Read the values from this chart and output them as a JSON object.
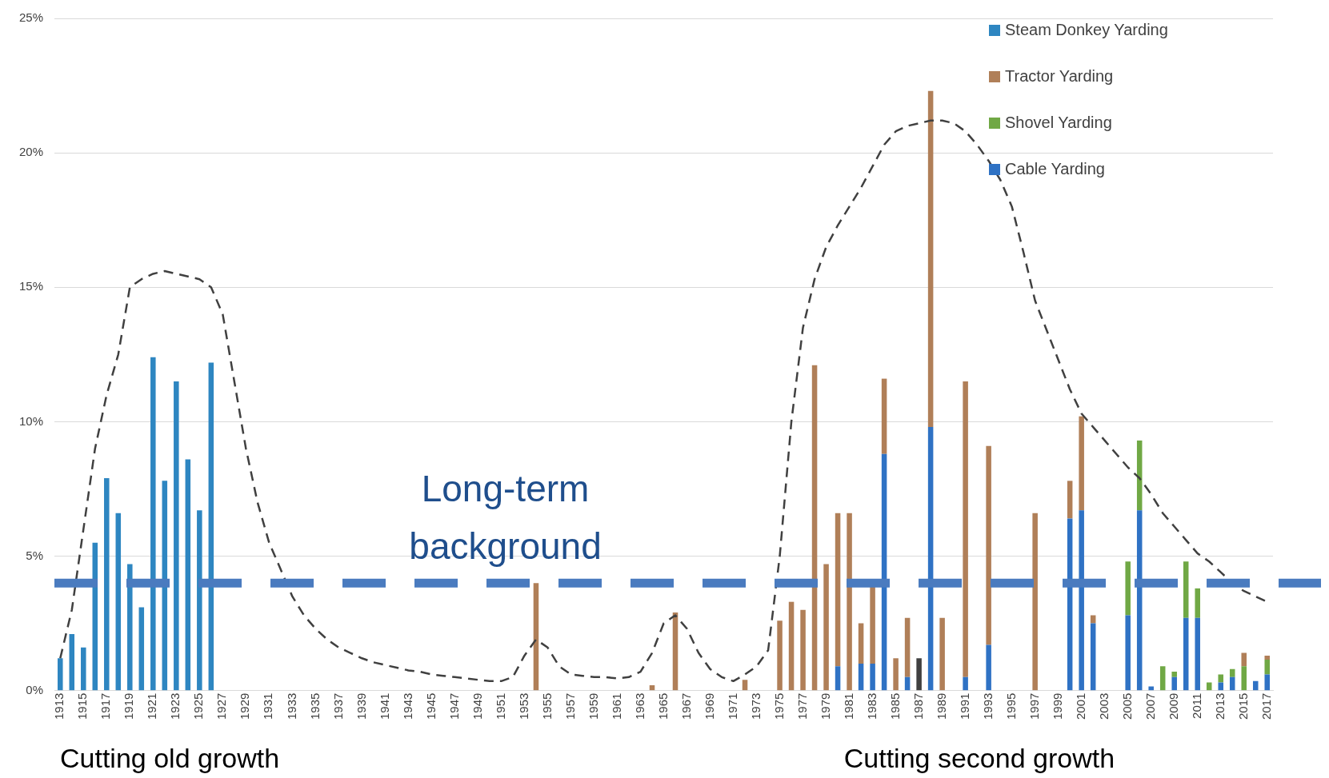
{
  "chart_data": {
    "type": "bar",
    "stacked": true,
    "categories": [
      "1913",
      null,
      "1915",
      null,
      "1917",
      null,
      "1919",
      null,
      "1921",
      null,
      "1923",
      null,
      "1925",
      null,
      "1927",
      null,
      "1929",
      null,
      "1931",
      null,
      "1933",
      null,
      "1935",
      null,
      "1937",
      null,
      "1939",
      null,
      "1941",
      null,
      "1943",
      null,
      "1945",
      null,
      "1947",
      null,
      "1949",
      null,
      "1951",
      null,
      "1953",
      null,
      "1955",
      null,
      "1957",
      null,
      "1959",
      null,
      "1961",
      null,
      "1963",
      null,
      "1965",
      null,
      "1967",
      null,
      "1969",
      null,
      "1971",
      null,
      "1973",
      null,
      "1975",
      null,
      "1977",
      null,
      "1979",
      null,
      "1981",
      null,
      "1983",
      null,
      "1985",
      null,
      "1987",
      null,
      "1989",
      null,
      "1991",
      null,
      "1993",
      null,
      "1995",
      null,
      "1997",
      null,
      "1999",
      null,
      "2001",
      null,
      "2003",
      null,
      "2005",
      null,
      "2007",
      null,
      "2009",
      null,
      "2011",
      null,
      "2013",
      null,
      "2015",
      null,
      "2017"
    ],
    "series": [
      {
        "name": "Cable Yarding",
        "color": "#2f72c4",
        "values": [
          null,
          null,
          null,
          null,
          null,
          null,
          null,
          null,
          null,
          null,
          null,
          null,
          null,
          null,
          null,
          null,
          null,
          null,
          null,
          null,
          null,
          null,
          null,
          null,
          null,
          null,
          null,
          null,
          null,
          null,
          null,
          null,
          null,
          null,
          null,
          null,
          null,
          null,
          null,
          null,
          null,
          null,
          null,
          null,
          null,
          null,
          null,
          null,
          null,
          null,
          null,
          null,
          null,
          null,
          null,
          null,
          null,
          null,
          null,
          null,
          null,
          null,
          null,
          null,
          null,
          null,
          null,
          0.9,
          null,
          1.0,
          1.0,
          8.8,
          null,
          0.5,
          null,
          9.8,
          null,
          null,
          0.5,
          null,
          1.7,
          null,
          null,
          null,
          null,
          null,
          null,
          6.4,
          6.7,
          2.5,
          null,
          null,
          2.8,
          6.7,
          0.15,
          null,
          0.5,
          2.7,
          2.7,
          null,
          0.3,
          0.5,
          null,
          0.35,
          0.6
        ]
      },
      {
        "name": "Shovel Yarding",
        "color": "#70a845",
        "values": [
          null,
          null,
          null,
          null,
          null,
          null,
          null,
          null,
          null,
          null,
          null,
          null,
          null,
          null,
          null,
          null,
          null,
          null,
          null,
          null,
          null,
          null,
          null,
          null,
          null,
          null,
          null,
          null,
          null,
          null,
          null,
          null,
          null,
          null,
          null,
          null,
          null,
          null,
          null,
          null,
          null,
          null,
          null,
          null,
          null,
          null,
          null,
          null,
          null,
          null,
          null,
          null,
          null,
          null,
          null,
          null,
          null,
          null,
          null,
          null,
          null,
          null,
          null,
          null,
          null,
          null,
          null,
          null,
          null,
          null,
          null,
          null,
          null,
          null,
          null,
          null,
          null,
          null,
          null,
          null,
          null,
          null,
          null,
          null,
          null,
          null,
          null,
          null,
          null,
          null,
          null,
          null,
          2.0,
          2.6,
          null,
          0.9,
          0.2,
          2.1,
          1.1,
          0.3,
          0.3,
          0.3,
          0.9,
          null,
          0.55
        ]
      },
      {
        "name": "Tractor Yarding",
        "color": "#b07f58",
        "values": [
          null,
          null,
          null,
          null,
          null,
          null,
          null,
          null,
          null,
          null,
          null,
          null,
          null,
          null,
          null,
          null,
          null,
          null,
          null,
          null,
          null,
          null,
          null,
          null,
          null,
          null,
          null,
          null,
          null,
          null,
          null,
          null,
          null,
          null,
          null,
          null,
          null,
          null,
          null,
          null,
          null,
          4.0,
          null,
          null,
          null,
          null,
          null,
          null,
          null,
          null,
          null,
          0.2,
          null,
          2.9,
          null,
          null,
          null,
          null,
          null,
          0.4,
          null,
          null,
          2.6,
          3.3,
          3.0,
          12.1,
          4.7,
          5.7,
          6.6,
          1.5,
          2.9,
          2.8,
          1.2,
          2.2,
          null,
          12.5,
          2.7,
          null,
          11.0,
          null,
          7.4,
          null,
          null,
          null,
          6.6,
          null,
          null,
          1.4,
          3.5,
          0.3,
          null,
          null,
          null,
          null,
          null,
          null,
          null,
          null,
          null,
          null,
          null,
          null,
          0.5,
          null,
          0.15
        ]
      },
      {
        "name": "Steam Donkey Yarding",
        "color": "#2e86c1",
        "values": [
          1.2,
          2.1,
          1.6,
          5.5,
          7.9,
          6.6,
          4.7,
          3.1,
          12.4,
          7.8,
          11.5,
          8.6,
          6.7,
          12.2,
          null,
          null,
          null,
          null,
          null,
          null,
          null,
          null,
          null,
          null,
          null,
          null,
          null,
          null,
          null,
          null,
          null,
          null,
          null,
          null,
          null,
          null,
          null,
          null,
          null,
          null,
          null,
          null,
          null,
          null,
          null,
          null,
          null,
          null,
          null,
          null,
          null,
          null,
          null,
          null,
          null,
          null,
          null,
          null,
          null,
          null,
          null,
          null,
          null,
          null,
          null,
          null,
          null,
          null,
          null,
          null,
          null,
          null,
          null,
          null,
          null,
          null,
          null,
          null,
          null,
          null,
          null,
          null,
          null,
          null,
          null,
          null,
          null,
          null,
          null,
          null,
          null,
          null,
          null,
          null,
          null,
          null,
          null,
          null,
          null,
          null,
          null,
          null,
          null,
          null,
          null
        ]
      },
      {
        "color": "#404040",
        "values": [
          null,
          null,
          null,
          null,
          null,
          null,
          null,
          null,
          null,
          null,
          null,
          null,
          null,
          null,
          null,
          null,
          null,
          null,
          null,
          null,
          null,
          null,
          null,
          null,
          null,
          null,
          null,
          null,
          null,
          null,
          null,
          null,
          null,
          null,
          null,
          null,
          null,
          null,
          null,
          null,
          null,
          null,
          null,
          null,
          null,
          null,
          null,
          null,
          null,
          null,
          null,
          null,
          null,
          null,
          null,
          null,
          null,
          null,
          null,
          null,
          null,
          null,
          null,
          null,
          null,
          null,
          null,
          null,
          null,
          null,
          null,
          null,
          null,
          null,
          1.2,
          null,
          null,
          null,
          null,
          null,
          null,
          null,
          null,
          null,
          null,
          null,
          null,
          null,
          null,
          null,
          null,
          null,
          null,
          null,
          null,
          null,
          null,
          null,
          null,
          null,
          null,
          null,
          null,
          null,
          null
        ]
      },
      {
        "type": "line",
        "color": "#404040",
        "line_style": "dashed",
        "marker": "none",
        "values": [
          1.2,
          3,
          6,
          9,
          11,
          12.5,
          15,
          15.3,
          15.5,
          15.6,
          15.5,
          15.4,
          15.3,
          15,
          14,
          11.5,
          9,
          7,
          5.5,
          4.5,
          3.5,
          2.8,
          2.3,
          1.9,
          1.6,
          1.4,
          1.2,
          1.05,
          0.95,
          0.85,
          0.75,
          0.7,
          0.6,
          0.55,
          0.5,
          0.45,
          0.4,
          0.35,
          0.35,
          0.5,
          1.3,
          1.9,
          1.6,
          0.9,
          0.6,
          0.55,
          0.5,
          0.5,
          0.45,
          0.5,
          0.7,
          1.4,
          2.5,
          2.8,
          2.3,
          1.4,
          0.8,
          0.5,
          0.35,
          0.6,
          0.9,
          1.5,
          5,
          10,
          13.5,
          15.3,
          16.5,
          17.3,
          18,
          18.7,
          19.5,
          20.3,
          20.8,
          21,
          21.1,
          21.2,
          21.2,
          21.1,
          20.8,
          20.3,
          19.7,
          19,
          18,
          16.3,
          14.5,
          13.4,
          12.3,
          11.2,
          10.3,
          9.8,
          9.3,
          8.8,
          8.3,
          7.9,
          7.3,
          6.6,
          6.1,
          5.6,
          5.1,
          4.8,
          4.4,
          4.0,
          3.7,
          3.5,
          3.3
        ]
      }
    ],
    "ylim": [
      0,
      25
    ],
    "yticks": [
      {
        "value": 0,
        "label": "0%"
      },
      {
        "value": 5,
        "label": "5%"
      },
      {
        "value": 10,
        "label": "10%"
      },
      {
        "value": 15,
        "label": "15%"
      },
      {
        "value": 20,
        "label": "20%"
      },
      {
        "value": 25,
        "label": "25%"
      }
    ],
    "grid": "y",
    "legend": "top right",
    "ref_lines": [
      {
        "axis": "y",
        "value": 4,
        "label": "Long-term background",
        "color": "#4a7bbf",
        "line_style": "dashed"
      }
    ],
    "annotations": [
      "Cutting old growth",
      "Cutting second growth"
    ]
  }
}
